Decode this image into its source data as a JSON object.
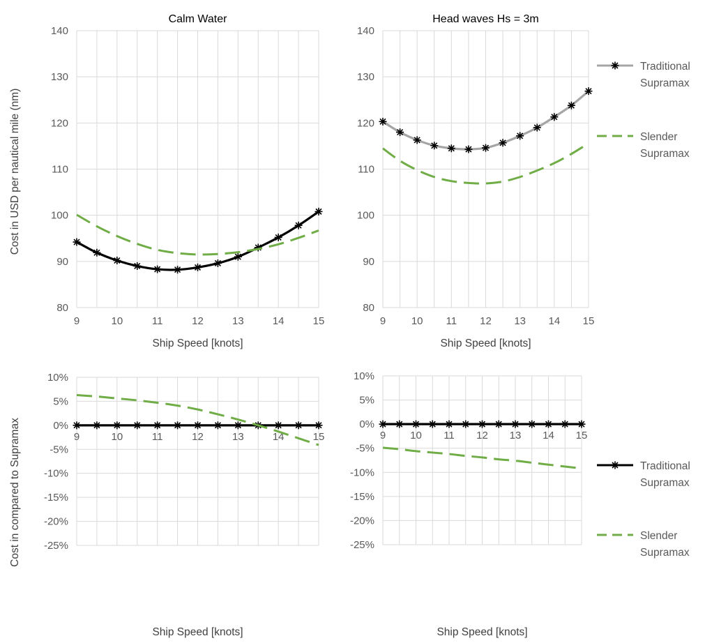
{
  "chart_data": [
    {
      "type": "line",
      "title": "Calm Water",
      "xlabel": "Ship Speed [knots]",
      "ylabel": "Cost in USD per nautical mile (nm)",
      "xlim": [
        9,
        15
      ],
      "ylim": [
        80,
        140
      ],
      "x_ticks": [
        "9",
        "10",
        "11",
        "12",
        "13",
        "14",
        "15"
      ],
      "y_ticks": [
        "80",
        "90",
        "100",
        "110",
        "120",
        "130",
        "140"
      ],
      "grid": true,
      "series": [
        {
          "name": "Traditional Supramax",
          "color": "#000000",
          "marker": "asterisk",
          "x": [
            9,
            9.5,
            10,
            10.5,
            11,
            11.5,
            12,
            12.5,
            13,
            13.5,
            14,
            14.5,
            15
          ],
          "values": [
            94.2,
            91.9,
            90.2,
            89.0,
            88.3,
            88.2,
            88.7,
            89.6,
            91.0,
            93.0,
            95.2,
            97.8,
            100.8
          ]
        },
        {
          "name": "Slender Supramax",
          "color": "#70ad47",
          "dash": true,
          "x": [
            9,
            9.5,
            10,
            10.5,
            11,
            11.5,
            12,
            12.5,
            13,
            13.5,
            14,
            14.5,
            15
          ],
          "values": [
            100.1,
            97.6,
            95.5,
            93.8,
            92.5,
            91.8,
            91.5,
            91.6,
            92.0,
            92.7,
            93.7,
            95.1,
            96.7
          ]
        }
      ]
    },
    {
      "type": "line",
      "title": "Head waves Hs = 3m",
      "xlabel": "Ship Speed [knots]",
      "ylabel": "",
      "xlim": [
        9,
        15
      ],
      "ylim": [
        80,
        140
      ],
      "x_ticks": [
        "9",
        "10",
        "11",
        "12",
        "13",
        "14",
        "15"
      ],
      "y_ticks": [
        "80",
        "90",
        "100",
        "110",
        "120",
        "130",
        "140"
      ],
      "grid": true,
      "legend": "right",
      "series": [
        {
          "name": "Traditional Supramax",
          "color": "#a5a5a5",
          "marker": "asterisk",
          "x": [
            9,
            9.5,
            10,
            10.5,
            11,
            11.5,
            12,
            12.5,
            13,
            13.5,
            14,
            14.5,
            15
          ],
          "values": [
            120.3,
            118.0,
            116.3,
            115.1,
            114.5,
            114.3,
            114.6,
            115.7,
            117.2,
            119.0,
            121.3,
            123.8,
            126.9
          ]
        },
        {
          "name": "Slender Supramax",
          "color": "#70ad47",
          "dash": true,
          "x": [
            9,
            9.5,
            10,
            10.5,
            11,
            11.5,
            12,
            12.5,
            13,
            13.5,
            14,
            14.5,
            15
          ],
          "values": [
            114.5,
            111.8,
            109.8,
            108.3,
            107.4,
            107.0,
            106.9,
            107.3,
            108.3,
            109.7,
            111.3,
            113.3,
            115.6
          ]
        }
      ]
    },
    {
      "type": "line",
      "title": "",
      "xlabel": "Ship Speed [knots]",
      "ylabel": "Cost in compared to Supramax",
      "xlim": [
        9,
        15
      ],
      "ylim": [
        -25,
        10
      ],
      "x_ticks": [
        "9",
        "10",
        "11",
        "12",
        "13",
        "14",
        "15"
      ],
      "y_ticks": [
        "-25%",
        "-20%",
        "-15%",
        "-10%",
        "-5%",
        "0%",
        "5%",
        "10%"
      ],
      "grid": true,
      "series": [
        {
          "name": "Traditional Supramax",
          "color": "#000000",
          "marker": "asterisk",
          "x": [
            9,
            9.5,
            10,
            10.5,
            11,
            11.5,
            12,
            12.5,
            13,
            13.5,
            14,
            14.5,
            15
          ],
          "values": [
            0,
            0,
            0,
            0,
            0,
            0,
            0,
            0,
            0,
            0,
            0,
            0,
            0
          ]
        },
        {
          "name": "Slender Supramax",
          "color": "#70ad47",
          "dash": true,
          "x": [
            9,
            9.5,
            10,
            10.5,
            11,
            11.5,
            12,
            12.5,
            13,
            13.5,
            14,
            14.5,
            15
          ],
          "values": [
            6.3,
            6.0,
            5.6,
            5.2,
            4.7,
            4.1,
            3.3,
            2.3,
            1.2,
            0.0,
            -1.3,
            -2.7,
            -4.1
          ]
        }
      ]
    },
    {
      "type": "line",
      "title": "",
      "xlabel": "Ship Speed [knots]",
      "ylabel": "",
      "xlim": [
        9,
        15
      ],
      "ylim": [
        -25,
        10
      ],
      "x_ticks": [
        "9",
        "10",
        "11",
        "12",
        "13",
        "14",
        "15"
      ],
      "y_ticks": [
        "-25%",
        "-20%",
        "-15%",
        "-10%",
        "-5%",
        "0%",
        "5%",
        "10%"
      ],
      "grid": true,
      "legend": "right",
      "series": [
        {
          "name": "Traditional Supramax",
          "color": "#000000",
          "marker": "asterisk",
          "x": [
            9,
            9.5,
            10,
            10.5,
            11,
            11.5,
            12,
            12.5,
            13,
            13.5,
            14,
            14.5,
            15
          ],
          "values": [
            0,
            0,
            0,
            0,
            0,
            0,
            0,
            0,
            0,
            0,
            0,
            0,
            0
          ]
        },
        {
          "name": "Slender Supramax",
          "color": "#70ad47",
          "dash": true,
          "x": [
            9,
            9.5,
            10,
            10.5,
            11,
            11.5,
            12,
            12.5,
            13,
            13.5,
            14,
            14.5,
            15
          ],
          "values": [
            -4.9,
            -5.2,
            -5.6,
            -5.9,
            -6.2,
            -6.6,
            -6.9,
            -7.3,
            -7.6,
            -8.0,
            -8.4,
            -8.8,
            -9.2
          ]
        }
      ]
    }
  ],
  "legends": [
    {
      "entries": [
        {
          "lines": [
            "Traditional",
            "Supramax"
          ],
          "color": "#a5a5a5",
          "marker": "asterisk",
          "dash": false
        },
        {
          "lines": [
            "Slender",
            "Supramax"
          ],
          "color": "#70ad47",
          "marker": "",
          "dash": true
        }
      ]
    },
    {
      "entries": [
        {
          "lines": [
            "Traditional",
            "Supramax"
          ],
          "color": "#000000",
          "marker": "asterisk",
          "dash": false
        },
        {
          "lines": [
            "Slender",
            "Supramax"
          ],
          "color": "#70ad47",
          "marker": "",
          "dash": true
        }
      ]
    }
  ]
}
